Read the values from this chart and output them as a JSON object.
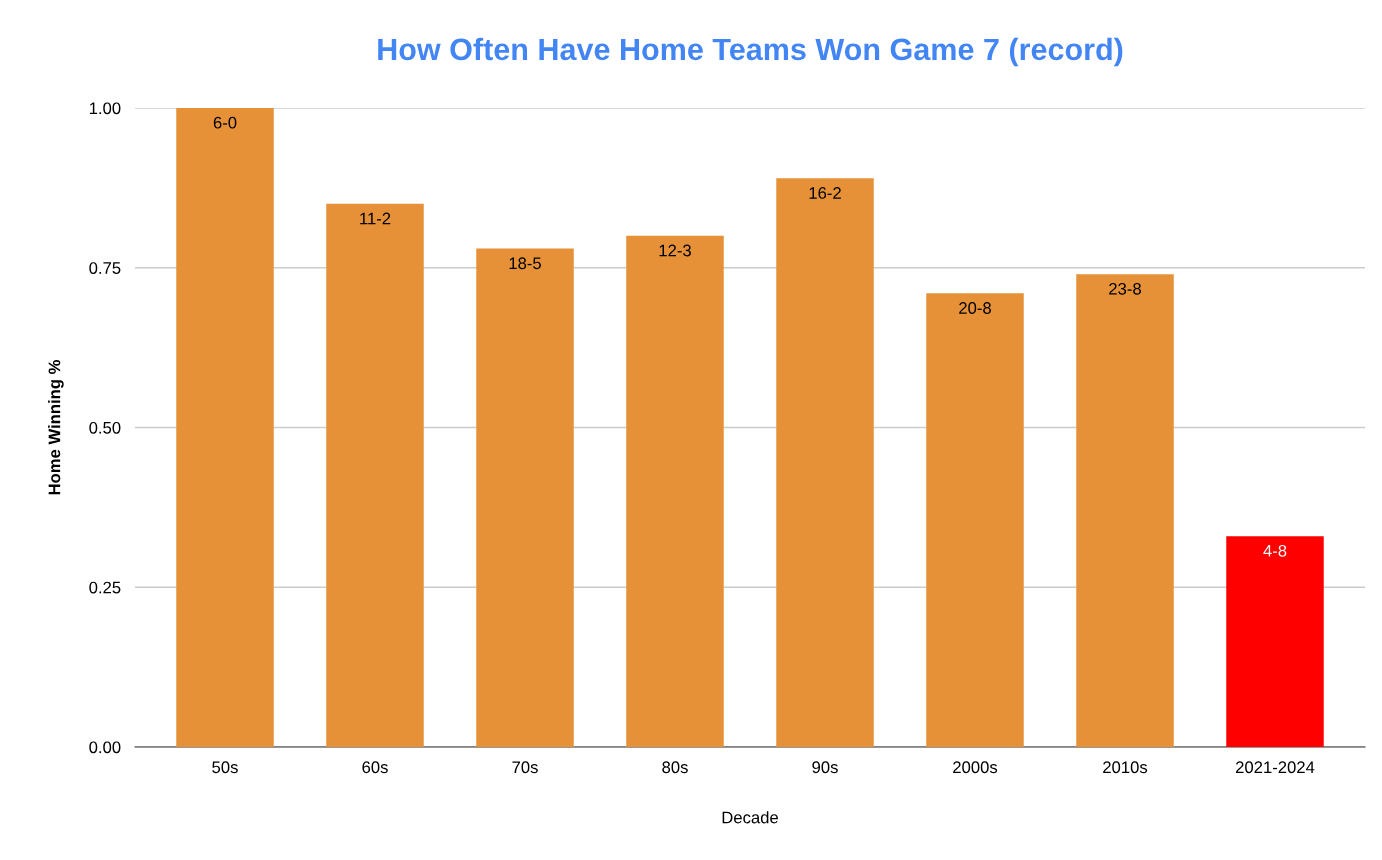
{
  "chart_data": {
    "type": "bar",
    "title": "How Often Have Home Teams Won Game 7 (record)",
    "xlabel": "Decade",
    "ylabel": "Home Winning %",
    "categories": [
      "50s",
      "60s",
      "70s",
      "80s",
      "90s",
      "2000s",
      "2010s",
      "2021-2024"
    ],
    "values": [
      1.0,
      0.85,
      0.78,
      0.8,
      0.89,
      0.71,
      0.74,
      0.33
    ],
    "colors": [
      "#e69138",
      "#e69138",
      "#e69138",
      "#e69138",
      "#e69138",
      "#e69138",
      "#e69138",
      "#ff0000"
    ],
    "value_labels": [
      "6-0",
      "11-2",
      "18-5",
      "12-3",
      "16-2",
      "20-8",
      "23-8",
      "4-8"
    ],
    "ylim": [
      0,
      1
    ],
    "yticks": [
      {
        "value": 0,
        "label": "0.00"
      },
      {
        "value": 0.25,
        "label": "0.25"
      },
      {
        "value": 0.5,
        "label": "0.50"
      },
      {
        "value": 0.75,
        "label": "0.75"
      },
      {
        "value": 1,
        "label": "1.00"
      }
    ],
    "grid": "y"
  }
}
